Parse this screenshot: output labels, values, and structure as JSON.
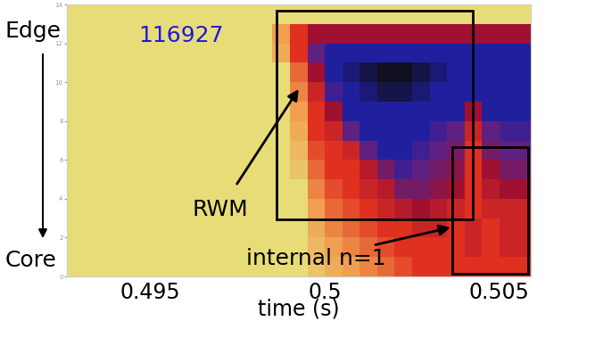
{
  "chart_data": {
    "type": "heatmap",
    "shot": "116927",
    "edge_label": "Edge",
    "core_label": "Core",
    "xlabel": "time (s)",
    "annotations": [
      "RWM",
      "internal n=1"
    ],
    "xlim": [
      0.4926,
      0.5059
    ],
    "xticks": [
      0.495,
      0.5,
      0.505
    ],
    "ylim": [
      0,
      14
    ],
    "yticks": [
      0,
      2,
      4,
      6,
      8,
      10,
      12,
      14
    ],
    "color_range": [
      0,
      1
    ],
    "x_edges": [
      0.4925,
      0.495,
      0.4955,
      0.496,
      0.4965,
      0.497,
      0.4975,
      0.498,
      0.4985,
      0.499,
      0.4995,
      0.5,
      0.5005,
      0.501,
      0.5015,
      0.502,
      0.5025,
      0.503,
      0.5035,
      0.504,
      0.5045,
      0.505,
      0.506
    ],
    "y_edges": [
      0,
      1,
      2,
      3,
      4,
      5,
      6,
      7,
      8,
      9,
      10,
      11,
      12,
      13,
      14
    ],
    "cells": [
      [
        0,
        0,
        0,
        0,
        0,
        0,
        0,
        0,
        0,
        0,
        0.1,
        0.2,
        0.25,
        0.3,
        0.35,
        0.4,
        0.45,
        0.45,
        0.45,
        0.45,
        0.45,
        0.45
      ],
      [
        0,
        0,
        0,
        0,
        0,
        0,
        0,
        0,
        0,
        0,
        0.15,
        0.25,
        0.3,
        0.35,
        0.4,
        0.45,
        0.45,
        0.45,
        0.45,
        0.5,
        0.45,
        0.5
      ],
      [
        0,
        0,
        0,
        0,
        0,
        0,
        0,
        0,
        0,
        0,
        0.2,
        0.3,
        0.35,
        0.4,
        0.45,
        0.45,
        0.5,
        0.5,
        0.45,
        0.5,
        0.45,
        0.5
      ],
      [
        0,
        0,
        0,
        0,
        0,
        0,
        0,
        0,
        0,
        0,
        0.25,
        0.35,
        0.4,
        0.45,
        0.5,
        0.55,
        0.6,
        0.55,
        0.5,
        0.45,
        0.5,
        0.5
      ],
      [
        0,
        0,
        0,
        0,
        0,
        0,
        0,
        0,
        0,
        0,
        0.3,
        0.4,
        0.45,
        0.5,
        0.55,
        0.7,
        0.7,
        0.65,
        0.6,
        0.45,
        0.55,
        0.6
      ],
      [
        0,
        0,
        0,
        0,
        0,
        0,
        0,
        0,
        0,
        0.1,
        0.35,
        0.45,
        0.45,
        0.55,
        0.7,
        0.8,
        0.75,
        0.7,
        0.65,
        0.45,
        0.6,
        0.7
      ],
      [
        0,
        0,
        0,
        0,
        0,
        0,
        0,
        0,
        0,
        0.15,
        0.4,
        0.45,
        0.5,
        0.75,
        0.85,
        0.85,
        0.8,
        0.75,
        0.7,
        0.45,
        0.7,
        0.75
      ],
      [
        0,
        0,
        0,
        0,
        0,
        0,
        0,
        0,
        0,
        0.2,
        0.45,
        0.5,
        0.75,
        0.85,
        0.85,
        0.85,
        0.85,
        0.8,
        0.75,
        0.5,
        0.75,
        0.8
      ],
      [
        0,
        0,
        0,
        0,
        0,
        0,
        0,
        0,
        0,
        0.25,
        0.45,
        0.6,
        0.85,
        0.85,
        0.85,
        0.85,
        0.85,
        0.85,
        0.85,
        0.6,
        0.85,
        0.85
      ],
      [
        0,
        0,
        0,
        0,
        0,
        0,
        0,
        0,
        0,
        0.3,
        0.5,
        0.8,
        0.85,
        0.9,
        0.95,
        0.95,
        0.9,
        0.85,
        0.85,
        0.85,
        0.85,
        0.85
      ],
      [
        0,
        0,
        0,
        0,
        0,
        0,
        0,
        0,
        0,
        0.35,
        0.6,
        0.85,
        0.9,
        0.95,
        1,
        1,
        0.95,
        0.9,
        0.85,
        0.85,
        0.85,
        0.85
      ],
      [
        0,
        0,
        0,
        0,
        0,
        0,
        0,
        0,
        0.2,
        0.45,
        0.75,
        0.85,
        0.85,
        0.85,
        0.85,
        0.85,
        0.85,
        0.85,
        0.85,
        0.85,
        0.85,
        0.85
      ],
      [
        0,
        0,
        0,
        0,
        0,
        0,
        0,
        0,
        0.25,
        0.45,
        0.6,
        0.6,
        0.6,
        0.6,
        0.6,
        0.6,
        0.6,
        0.6,
        0.6,
        0.6,
        0.6,
        0.6
      ],
      [
        0,
        0,
        0,
        0,
        0,
        0,
        0,
        0,
        0,
        0,
        0,
        0,
        0,
        0,
        0,
        0,
        0,
        0,
        0,
        0,
        0,
        0
      ]
    ]
  }
}
